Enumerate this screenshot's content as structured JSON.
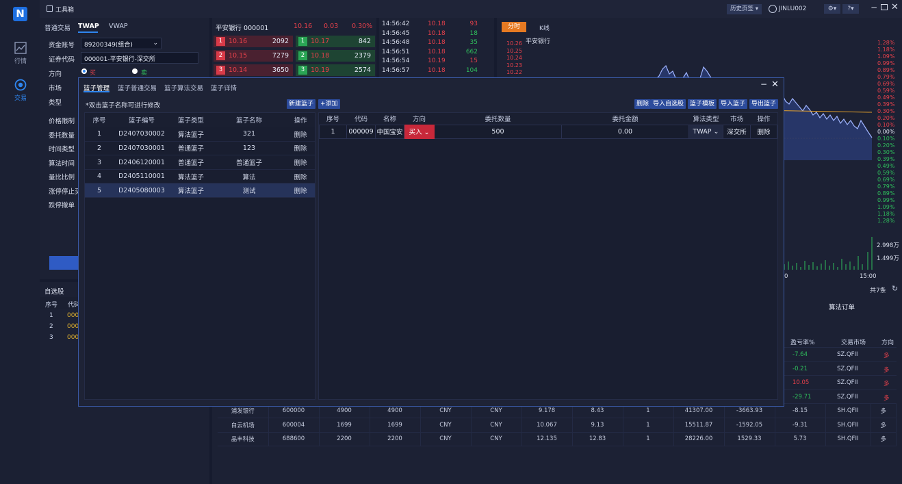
{
  "app": {
    "logo": "N",
    "title": "工具箱"
  },
  "nav": {
    "quotes": "行情",
    "trade": "交易"
  },
  "topbar": {
    "history": "历史页签",
    "user": "JINLU002"
  },
  "trade": {
    "tabs": [
      "普通交易",
      "TWAP",
      "VWAP"
    ],
    "active_tab": "TWAP",
    "account_label": "资金账号",
    "account_value": "89200349(组合)",
    "code_label": "证券代码",
    "code_value": "000001-平安银行-深交所",
    "direction_label": "方向",
    "buy": "买",
    "sell": "卖",
    "market_label": "市场",
    "type_label": "类型",
    "labels": [
      "价格限制",
      "委托数量",
      "时间类型",
      "算法时间",
      "量比比例",
      "涨停停止买",
      "跌停撤单"
    ]
  },
  "quote": {
    "title": "平安银行 000001",
    "price": "10.16",
    "change": "0.03",
    "pct": "0.30%",
    "sells": [
      {
        "lvl": "1",
        "price": "10.16",
        "vol": "2092"
      },
      {
        "lvl": "2",
        "price": "10.15",
        "vol": "7279"
      },
      {
        "lvl": "3",
        "price": "10.14",
        "vol": "3650"
      }
    ],
    "buys": [
      {
        "lvl": "1",
        "price": "10.17",
        "vol": "842"
      },
      {
        "lvl": "2",
        "price": "10.18",
        "vol": "2379"
      },
      {
        "lvl": "3",
        "price": "10.19",
        "vol": "2574"
      }
    ]
  },
  "ticks": [
    {
      "time": "14:56:42",
      "price": "10.18",
      "vol": "93",
      "c": "red"
    },
    {
      "time": "14:56:45",
      "price": "10.18",
      "vol": "18",
      "c": "green"
    },
    {
      "time": "14:56:48",
      "price": "10.18",
      "vol": "35",
      "c": "green"
    },
    {
      "time": "14:56:51",
      "price": "10.18",
      "vol": "662",
      "c": "green"
    },
    {
      "time": "14:56:54",
      "price": "10.19",
      "vol": "15",
      "c": "red"
    },
    {
      "time": "14:56:57",
      "price": "10.18",
      "vol": "104",
      "c": "green"
    }
  ],
  "chart": {
    "tabs": [
      "分时",
      "K线"
    ],
    "name": "平安银行",
    "left_ticks": [
      "10.26",
      "10.25",
      "10.24",
      "10.23",
      "10.22"
    ],
    "right_pcts": [
      {
        "v": "1.28%",
        "c": "red"
      },
      {
        "v": "1.18%",
        "c": "red"
      },
      {
        "v": "1.09%",
        "c": "red"
      },
      {
        "v": "0.99%",
        "c": "red"
      },
      {
        "v": "0.89%",
        "c": "red"
      },
      {
        "v": "0.79%",
        "c": "red"
      },
      {
        "v": "0.69%",
        "c": "red"
      },
      {
        "v": "0.59%",
        "c": "red"
      },
      {
        "v": "0.49%",
        "c": "red"
      },
      {
        "v": "0.39%",
        "c": "red"
      },
      {
        "v": "0.30%",
        "c": "red"
      },
      {
        "v": "0.20%",
        "c": "red"
      },
      {
        "v": "0.10%",
        "c": "red"
      },
      {
        "v": "0.00%",
        "c": "white"
      },
      {
        "v": "0.10%",
        "c": "green"
      },
      {
        "v": "0.20%",
        "c": "green"
      },
      {
        "v": "0.30%",
        "c": "green"
      },
      {
        "v": "0.39%",
        "c": "green"
      },
      {
        "v": "0.49%",
        "c": "green"
      },
      {
        "v": "0.59%",
        "c": "green"
      },
      {
        "v": "0.69%",
        "c": "green"
      },
      {
        "v": "0.79%",
        "c": "green"
      },
      {
        "v": "0.89%",
        "c": "green"
      },
      {
        "v": "0.99%",
        "c": "green"
      },
      {
        "v": "1.09%",
        "c": "green"
      },
      {
        "v": "1.18%",
        "c": "green"
      },
      {
        "v": "1.28%",
        "c": "green"
      }
    ],
    "vol_top": "2.998万",
    "vol_mid": "1.499万",
    "x_left": "0",
    "x_right": "15:00"
  },
  "watch": {
    "title": "自选股",
    "cols": [
      "序号",
      "代码"
    ],
    "rows": [
      {
        "n": "1",
        "code": "000"
      },
      {
        "n": "2",
        "code": "000"
      },
      {
        "n": "3",
        "code": "000"
      }
    ]
  },
  "orders": {
    "count": "共7条",
    "title": "算法订单",
    "headers": [
      "盈亏率%",
      "交易市场",
      "方向"
    ],
    "top_rows": [
      {
        "pnl": "-7.64",
        "c": "green",
        "mkt": "SZ.QFII",
        "dir": "多"
      },
      {
        "pnl": "-0.21",
        "c": "green",
        "mkt": "SZ.QFII",
        "dir": "多"
      },
      {
        "pnl": "10.05",
        "c": "red",
        "mkt": "SZ.QFII",
        "dir": "多"
      },
      {
        "pnl": "-29.71",
        "c": "green",
        "mkt": "SZ.QFII",
        "dir": "多"
      }
    ],
    "rows": [
      {
        "name": "浦发银行",
        "code": "600000",
        "a": "4900",
        "b": "4900",
        "c1": "CNY",
        "c2": "CNY",
        "cost": "9.178",
        "price": "8.43",
        "x": "1",
        "val": "41307.00",
        "pl": "-3663.93",
        "pct": "-8.15",
        "mkt": "SH.QFII",
        "dir": "多",
        "pc": "green"
      },
      {
        "name": "白云机场",
        "code": "600004",
        "a": "1699",
        "b": "1699",
        "c1": "CNY",
        "c2": "CNY",
        "cost": "10.067",
        "price": "9.13",
        "x": "1",
        "val": "15511.87",
        "pl": "-1592.05",
        "pct": "-9.31",
        "mkt": "SH.QFII",
        "dir": "多",
        "pc": "green"
      },
      {
        "name": "晶丰科技",
        "code": "688600",
        "a": "2200",
        "b": "2200",
        "c1": "CNY",
        "c2": "CNY",
        "cost": "12.135",
        "price": "12.83",
        "x": "1",
        "val": "28226.00",
        "pl": "1529.33",
        "pct": "5.73",
        "mkt": "SH.QFII",
        "dir": "多",
        "pc": "red"
      }
    ]
  },
  "modal": {
    "tabs": [
      "篮子管理",
      "篮子普通交易",
      "篮子算法交易",
      "篮子详情"
    ],
    "hint": "*双击篮子名称可进行修改",
    "new_btn": "新建篮子",
    "add_btn": "+添加",
    "right_btns": [
      "删除",
      "导入自选股",
      "篮子模板",
      "导入篮子",
      "导出篮子"
    ],
    "left_headers": [
      "序号",
      "篮子编号",
      "篮子类型",
      "篮子名称",
      "操作"
    ],
    "baskets": [
      {
        "n": "1",
        "id": "D2407030002",
        "type": "算法篮子",
        "name": "321",
        "op": "删除"
      },
      {
        "n": "2",
        "id": "D2407030001",
        "type": "普通篮子",
        "name": "123",
        "op": "删除"
      },
      {
        "n": "3",
        "id": "D2406120001",
        "type": "普通篮子",
        "name": "普通篮子",
        "op": "删除"
      },
      {
        "n": "4",
        "id": "D2405110001",
        "type": "算法篮子",
        "name": "算法",
        "op": "删除"
      },
      {
        "n": "5",
        "id": "D2405080003",
        "type": "算法篮子",
        "name": "测试",
        "op": "删除"
      }
    ],
    "right_headers": [
      "序号",
      "代码",
      "名称",
      "方向",
      "委托数量",
      "委托金额",
      "算法类型",
      "市场",
      "操作"
    ],
    "item": {
      "n": "1",
      "code": "000009",
      "name": "中国宝安",
      "dir": "买入",
      "qty": "500",
      "amt": "0.00",
      "algo": "TWAP",
      "mkt": "深交所",
      "op": "删除"
    }
  }
}
